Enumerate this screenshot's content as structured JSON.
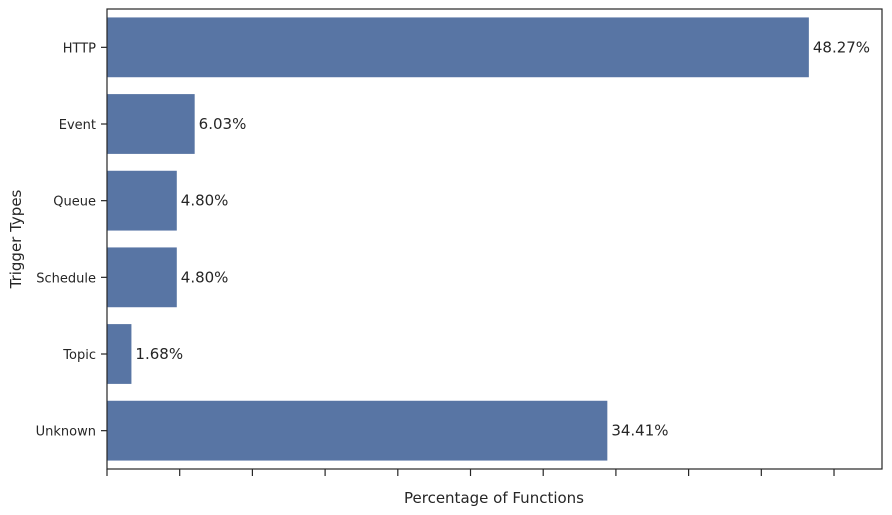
{
  "chart_data": {
    "type": "bar",
    "orientation": "horizontal",
    "title": "",
    "xlabel": "Percentage of Functions",
    "ylabel": "Trigger Types",
    "categories": [
      "HTTP",
      "Event",
      "Queue",
      "Schedule",
      "Topic",
      "Unknown"
    ],
    "values": [
      48.27,
      6.03,
      4.8,
      4.8,
      1.68,
      34.41
    ],
    "data_labels": [
      "48.27%",
      "6.03%",
      "4.80%",
      "4.80%",
      "1.68%",
      "34.41%"
    ],
    "xlim": [
      0,
      53.3
    ],
    "x_tick_values": [
      0,
      5,
      10,
      15,
      20,
      25,
      30,
      35,
      40,
      45,
      50
    ],
    "x_tick_labels_shown": false,
    "grid": false,
    "bar_color": "#5875a4"
  }
}
